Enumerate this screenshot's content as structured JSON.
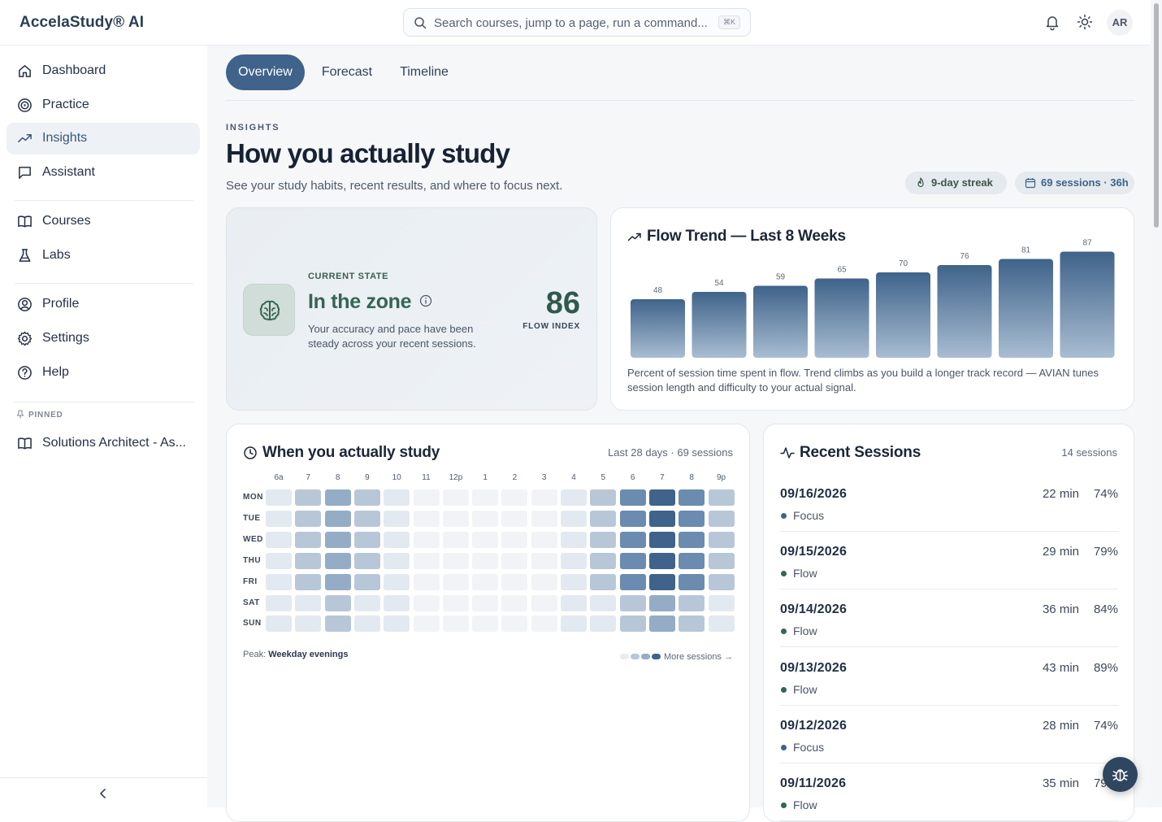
{
  "app": {
    "brand": "AccelaStudy® AI"
  },
  "search": {
    "placeholder": "Search courses, jump to a page, run a command...",
    "shortcut": "⌘K"
  },
  "header": {
    "notifications_icon": "bell-icon",
    "theme_icon": "sun-icon",
    "avatar_initials": "AR"
  },
  "sidebar": {
    "items": [
      {
        "label": "Dashboard",
        "icon": "home-icon"
      },
      {
        "label": "Practice",
        "icon": "target-icon"
      },
      {
        "label": "Insights",
        "icon": "trend-up-icon",
        "active": true
      },
      {
        "label": "Assistant",
        "icon": "chat-icon"
      },
      {
        "label": "Courses",
        "icon": "book-icon"
      },
      {
        "label": "Labs",
        "icon": "flask-icon"
      },
      {
        "label": "Profile",
        "icon": "user-circle-icon"
      },
      {
        "label": "Settings",
        "icon": "gear-icon"
      },
      {
        "label": "Help",
        "icon": "help-circle-icon"
      }
    ],
    "pinned_label": "PINNED",
    "pinned_items": [
      {
        "label": "Solutions Architect - As...",
        "icon": "book-icon"
      }
    ],
    "collapse_icon": "chevron-left-icon"
  },
  "tabs": [
    {
      "label": "Overview",
      "active": true
    },
    {
      "label": "Forecast"
    },
    {
      "label": "Timeline"
    }
  ],
  "page": {
    "eyebrow": "INSIGHTS",
    "title": "How you actually study",
    "subtitle": "See your study habits, recent results, and where to focus next.",
    "streak_pill": "9-day streak",
    "sessions_pill": "69 sessions · 36h"
  },
  "current_state": {
    "eyebrow": "CURRENT STATE",
    "title": "In the zone",
    "description": "Your accuracy and pace have been steady across your recent sessions.",
    "score": "86",
    "score_label": "FLOW INDEX",
    "accent_color": "#356553"
  },
  "flow_trend": {
    "title": "Flow Trend — Last 8 Weeks",
    "caption": "Percent of session time spent in flow. Trend climbs as you build a longer track record — AVIAN tunes session length and difficulty to your actual signal."
  },
  "chart_data": {
    "type": "bar",
    "title": "Flow Trend — Last 8 Weeks",
    "values": [
      48,
      54,
      59,
      65,
      70,
      76,
      81,
      87
    ],
    "ylim": [
      0,
      100
    ],
    "grid": false,
    "bar_color": "#3f638a"
  },
  "heatmap": {
    "title": "When you actually study",
    "meta": "Last 28 days · 69 sessions",
    "hours": [
      "6a",
      "7",
      "8",
      "9",
      "10",
      "11",
      "12p",
      "1",
      "2",
      "3",
      "4",
      "5",
      "6",
      "7",
      "8",
      "9p"
    ],
    "days": [
      "MON",
      "TUE",
      "WED",
      "THU",
      "FRI",
      "SAT",
      "SUN"
    ],
    "levels": [
      [
        1,
        2,
        3,
        2,
        1,
        0,
        0,
        0,
        0,
        0,
        1,
        2,
        4,
        5,
        4,
        2
      ],
      [
        1,
        2,
        3,
        2,
        1,
        0,
        0,
        0,
        0,
        0,
        1,
        2,
        4,
        5,
        4,
        2
      ],
      [
        1,
        2,
        3,
        2,
        1,
        0,
        0,
        0,
        0,
        0,
        1,
        2,
        4,
        5,
        4,
        2
      ],
      [
        1,
        2,
        3,
        2,
        1,
        0,
        0,
        0,
        0,
        0,
        1,
        2,
        4,
        5,
        4,
        2
      ],
      [
        1,
        2,
        3,
        2,
        1,
        0,
        0,
        0,
        0,
        0,
        1,
        2,
        4,
        5,
        4,
        2
      ],
      [
        1,
        1,
        2,
        1,
        1,
        0,
        0,
        0,
        0,
        0,
        1,
        1,
        2,
        3,
        2,
        1
      ],
      [
        1,
        1,
        2,
        1,
        1,
        0,
        0,
        0,
        0,
        0,
        1,
        1,
        2,
        3,
        2,
        1
      ]
    ],
    "palette": [
      "#f1f3f6",
      "#e3e9f0",
      "#b8c7d8",
      "#94acc6",
      "#6b8bb0",
      "#3f638a"
    ],
    "peak_label": "Peak:",
    "peak_value": "Weekday evenings",
    "legend_label": "More sessions →"
  },
  "recent_sessions": {
    "title": "Recent Sessions",
    "meta": "14 sessions",
    "items": [
      {
        "date": "09/16/2026",
        "duration": "22 min",
        "score": "74%",
        "mode": "Focus",
        "color": "#3f638a"
      },
      {
        "date": "09/15/2026",
        "duration": "29 min",
        "score": "79%",
        "mode": "Flow",
        "color": "#356553"
      },
      {
        "date": "09/14/2026",
        "duration": "36 min",
        "score": "84%",
        "mode": "Flow",
        "color": "#356553"
      },
      {
        "date": "09/13/2026",
        "duration": "43 min",
        "score": "89%",
        "mode": "Flow",
        "color": "#356553"
      },
      {
        "date": "09/12/2026",
        "duration": "28 min",
        "score": "74%",
        "mode": "Focus",
        "color": "#3f638a"
      },
      {
        "date": "09/11/2026",
        "duration": "35 min",
        "score": "79%",
        "mode": "Flow",
        "color": "#356553"
      }
    ]
  },
  "fab": {
    "icon": "bug-icon"
  }
}
